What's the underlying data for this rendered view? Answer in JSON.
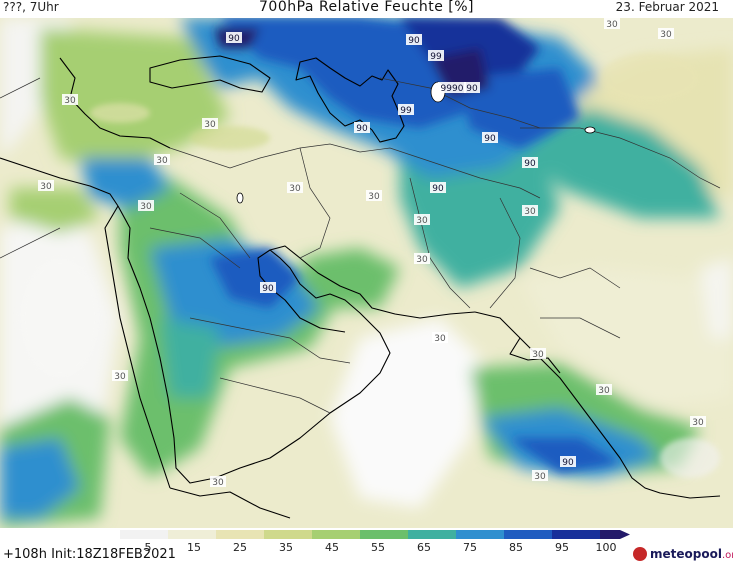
{
  "header": {
    "left": "???, 7Uhr",
    "title": "700hPa Relative Feuchte [%]",
    "date": "23. Februar 2021"
  },
  "footer": {
    "run": "+108h Init:18Z18FEB2021",
    "logo_main": "meteopool",
    "logo_suffix": ".org"
  },
  "colorbar": {
    "ticks": [
      "5",
      "15",
      "25",
      "35",
      "45",
      "55",
      "65",
      "75",
      "85",
      "95",
      "100"
    ],
    "colors": [
      "#f2f2f2",
      "#efeed7",
      "#e8e4b4",
      "#cfd98c",
      "#a6cf72",
      "#6cbf6c",
      "#3fb0a0",
      "#2f8fcf",
      "#1f5cc0",
      "#18309a",
      "#241a6a"
    ]
  },
  "map_labels": [
    {
      "text": "30",
      "region": "western-med"
    },
    {
      "text": "30",
      "region": "eastern-med"
    },
    {
      "text": "30",
      "region": "cyprus"
    },
    {
      "text": "30",
      "region": "egypt"
    },
    {
      "text": "30",
      "region": "levant"
    },
    {
      "text": "30",
      "region": "red-sea-north"
    },
    {
      "text": "30",
      "region": "iraq"
    },
    {
      "text": "30",
      "region": "iran-central"
    },
    {
      "text": "30",
      "region": "iran-east"
    },
    {
      "text": "30",
      "region": "pakistan"
    },
    {
      "text": "30",
      "region": "india-north"
    },
    {
      "text": "30",
      "region": "india-west"
    },
    {
      "text": "30",
      "region": "arabian-sea"
    },
    {
      "text": "30",
      "region": "oman"
    },
    {
      "text": "30",
      "region": "yemen"
    },
    {
      "text": "30",
      "region": "sudan"
    },
    {
      "text": "30",
      "region": "tibet"
    },
    {
      "text": "30",
      "region": "kazakhstan"
    },
    {
      "text": "30",
      "region": "arabian-sea-south"
    },
    {
      "text": "90",
      "region": "black-sea"
    },
    {
      "text": "90",
      "region": "caspian"
    },
    {
      "text": "99",
      "region": "caspian-north"
    },
    {
      "text": "99",
      "region": "caspian-east"
    },
    {
      "text": "9990",
      "region": "aral"
    },
    {
      "text": "90",
      "region": "central-asia"
    },
    {
      "text": "90",
      "region": "turkmenistan"
    },
    {
      "text": "90",
      "region": "afghanistan"
    },
    {
      "text": "90",
      "region": "arabia"
    },
    {
      "text": "90",
      "region": "arabian-sea-core"
    },
    {
      "text": "90",
      "region": "kazakh-east"
    },
    {
      "text": "90",
      "region": "anatolia"
    }
  ]
}
